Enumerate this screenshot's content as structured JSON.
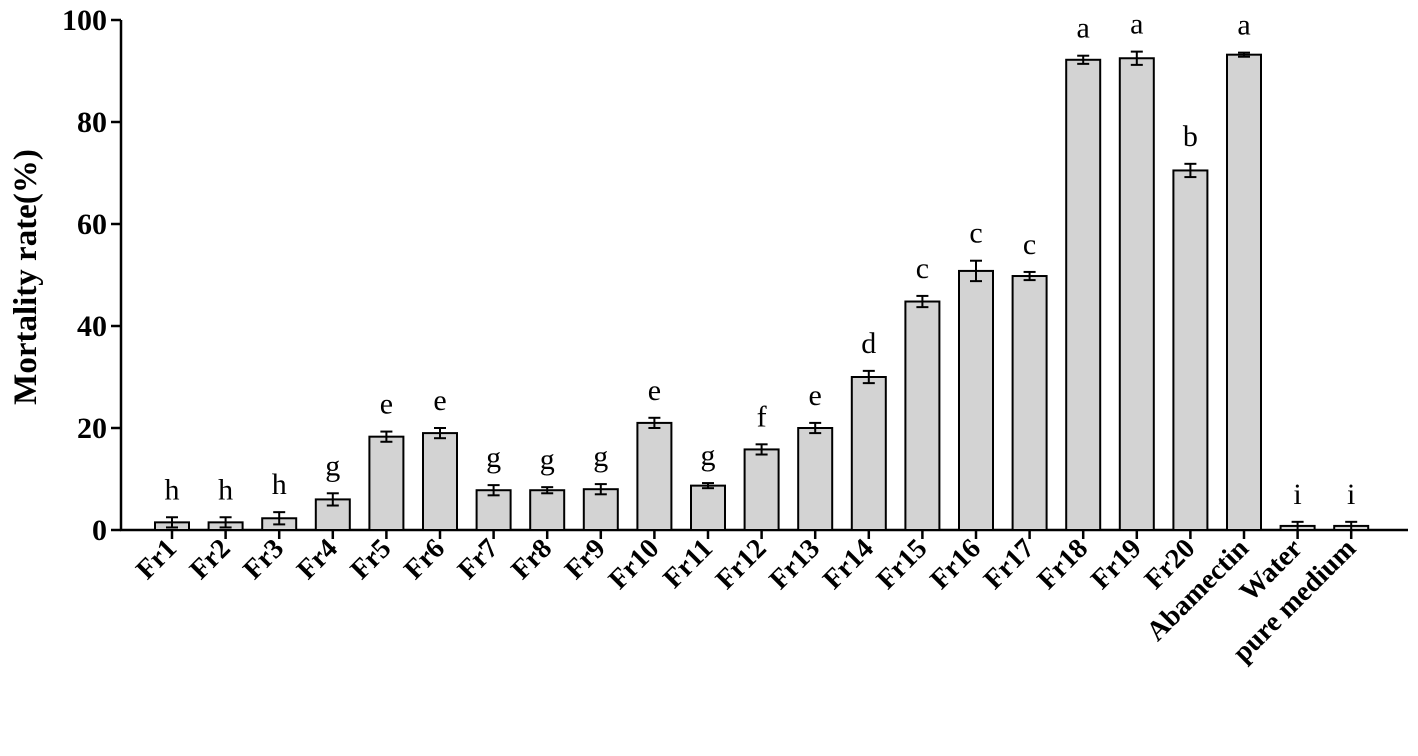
{
  "chart_data": {
    "type": "bar",
    "title": "",
    "xlabel": "",
    "ylabel": "Mortality rate(%)",
    "ylim": [
      0,
      100
    ],
    "yticks": [
      0,
      20,
      40,
      60,
      80,
      100
    ],
    "grid": false,
    "bar_color": "#d3d3d3",
    "categories": [
      "Fr1",
      "Fr2",
      "Fr3",
      "Fr4",
      "Fr5",
      "Fr6",
      "Fr7",
      "Fr8",
      "Fr9",
      "Fr10",
      "Fr11",
      "Fr12",
      "Fr13",
      "Fr14",
      "Fr15",
      "Fr16",
      "Fr17",
      "Fr18",
      "Fr19",
      "Fr20",
      "Abamectin",
      "Water",
      "pure medium"
    ],
    "values": [
      1.5,
      1.5,
      2.3,
      6.0,
      18.3,
      19.0,
      7.8,
      7.8,
      8.0,
      21.0,
      8.7,
      15.8,
      20.0,
      30.0,
      44.8,
      50.8,
      49.8,
      92.2,
      92.5,
      70.5,
      93.2,
      0.8,
      0.8
    ],
    "errors": [
      1.0,
      1.0,
      1.2,
      1.2,
      1.0,
      1.0,
      1.0,
      0.6,
      1.0,
      1.0,
      0.5,
      1.0,
      1.0,
      1.2,
      1.1,
      2.0,
      0.8,
      0.8,
      1.3,
      1.3,
      0.4,
      0.8,
      0.8
    ],
    "letters": [
      "h",
      "h",
      "h",
      "g",
      "e",
      "e",
      "g",
      "g",
      "g",
      "e",
      "g",
      "f",
      "e",
      "d",
      "c",
      "c",
      "c",
      "a",
      "a",
      "b",
      "a",
      "i",
      "i"
    ]
  }
}
